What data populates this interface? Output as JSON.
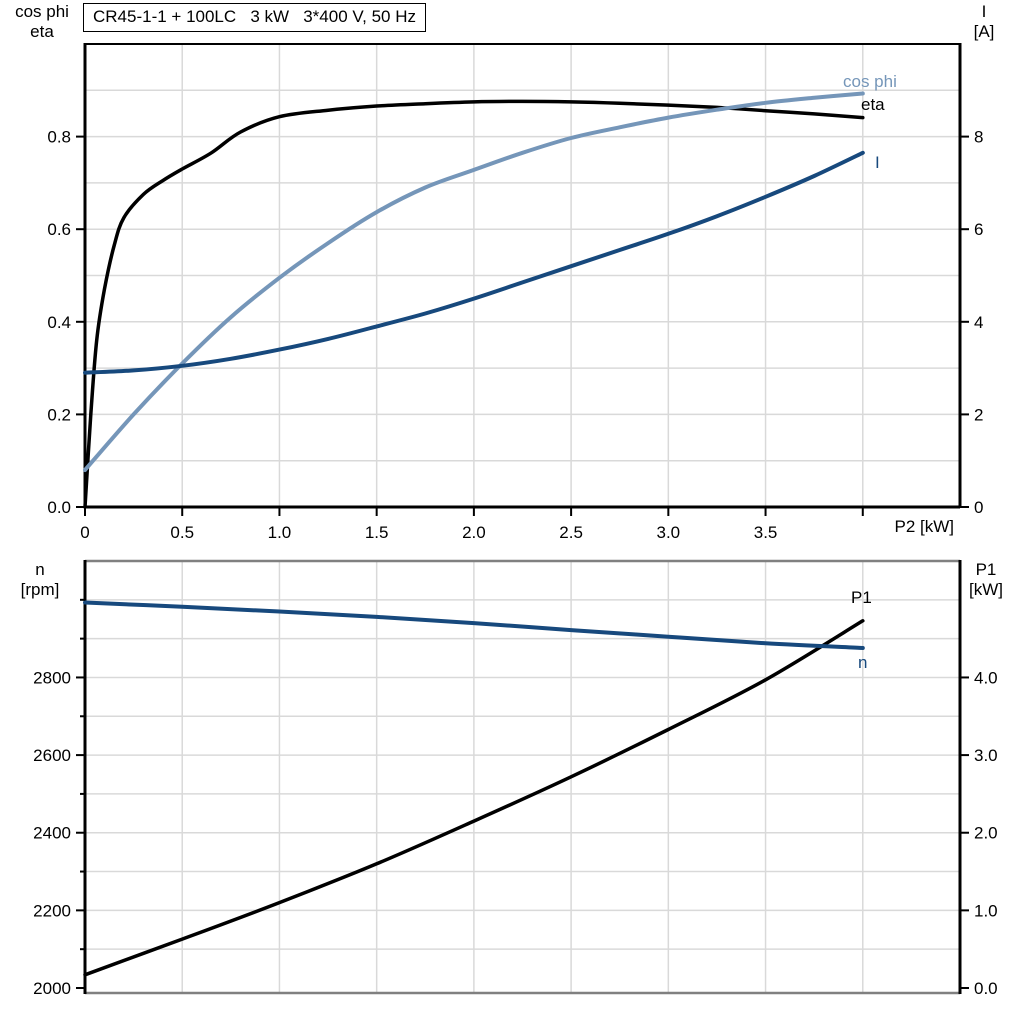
{
  "title": "CR45-1-1 + 100LC   3 kW   3*400 V, 50 Hz",
  "headers": {
    "top_left_1": "cos phi",
    "top_left_2": "eta",
    "top_right_1": "I",
    "top_right_2": "[A]",
    "bottom_left_1": "n",
    "bottom_left_2": "[rpm]",
    "bottom_right_1": "P1",
    "bottom_right_2": "[kW]",
    "x_label": "P2 [kW]"
  },
  "curve_labels": {
    "cos_phi": "cos phi",
    "eta": "eta",
    "current": "I",
    "p1": "P1",
    "n": "n"
  },
  "colors": {
    "eta": "#000000",
    "cos_phi": "#7596b9",
    "current": "#17497d",
    "n": "#17497d",
    "p1": "#000000",
    "grid": "#d9d9d9",
    "frame_gray": "#808080",
    "axis": "#000000",
    "text": "#000000"
  },
  "chart_data": [
    {
      "type": "line",
      "title": "CR45-1-1 + 100LC   3 kW   3*400 V, 50 Hz",
      "x_axis": {
        "label": "P2 [kW]",
        "range": [
          0,
          4.5
        ],
        "ticks": [
          0,
          0.5,
          1,
          1.5,
          2,
          2.5,
          3,
          3.5,
          4
        ],
        "tick_labels": [
          "0",
          "0.5",
          "1.0",
          "1.5",
          "2.0",
          "2.5",
          "3.0",
          "3.5",
          ""
        ],
        "grid_step": 0.5
      },
      "y_left": {
        "label": "cos phi / eta",
        "range": [
          0,
          1.0
        ],
        "ticks": [
          0,
          0.2,
          0.4,
          0.6,
          0.8
        ],
        "tick_labels": [
          "0.0",
          "0.2",
          "0.4",
          "0.6",
          "0.8"
        ],
        "grid_step": 0.1,
        "minor_ticks": []
      },
      "y_right": {
        "label": "I [A]",
        "range": [
          0,
          10
        ],
        "ticks": [
          0,
          2,
          4,
          6,
          8
        ],
        "tick_labels": [
          "0",
          "2",
          "4",
          "6",
          "8"
        ]
      },
      "series": [
        {
          "name": "eta",
          "axis": "left",
          "color_key": "eta",
          "width": 3.5,
          "x": [
            0,
            0.03,
            0.06,
            0.1,
            0.15,
            0.2,
            0.3,
            0.4,
            0.5,
            0.65,
            0.8,
            1.0,
            1.25,
            1.5,
            1.75,
            2.0,
            2.25,
            2.5,
            2.75,
            3.0,
            3.25,
            3.5,
            3.75,
            4.0
          ],
          "y": [
            0,
            0.2,
            0.36,
            0.47,
            0.565,
            0.625,
            0.675,
            0.705,
            0.73,
            0.765,
            0.81,
            0.843,
            0.857,
            0.866,
            0.871,
            0.875,
            0.876,
            0.875,
            0.872,
            0.868,
            0.863,
            0.856,
            0.849,
            0.841
          ]
        },
        {
          "name": "cos phi",
          "axis": "left",
          "color_key": "cos_phi",
          "width": 4,
          "x": [
            0,
            0.25,
            0.5,
            0.75,
            1.0,
            1.25,
            1.5,
            1.75,
            2.0,
            2.25,
            2.5,
            2.75,
            3.0,
            3.25,
            3.5,
            3.75,
            4.0
          ],
          "y": [
            0.08,
            0.2,
            0.31,
            0.41,
            0.495,
            0.57,
            0.637,
            0.69,
            0.728,
            0.765,
            0.797,
            0.82,
            0.841,
            0.858,
            0.873,
            0.884,
            0.893
          ]
        },
        {
          "name": "I",
          "axis": "right",
          "color_key": "current",
          "width": 4,
          "x": [
            0,
            0.25,
            0.5,
            0.75,
            1.0,
            1.25,
            1.5,
            1.75,
            2.0,
            2.25,
            2.5,
            2.75,
            3.0,
            3.25,
            3.5,
            3.75,
            4.0
          ],
          "y": [
            2.9,
            2.95,
            3.05,
            3.2,
            3.4,
            3.63,
            3.9,
            4.18,
            4.5,
            4.85,
            5.2,
            5.55,
            5.9,
            6.28,
            6.7,
            7.15,
            7.65
          ]
        }
      ]
    },
    {
      "type": "line",
      "title": "",
      "x_axis": {
        "label": "",
        "range": [
          0,
          4.5
        ],
        "ticks": [],
        "tick_labels": [],
        "grid_step": 0.5
      },
      "y_left": {
        "label": "n [rpm]",
        "range": [
          2000,
          3100
        ],
        "ticks": [
          2000,
          2200,
          2400,
          2600,
          2800
        ],
        "tick_labels": [
          "2000",
          "2200",
          "2400",
          "2600",
          "2800"
        ],
        "minor_ticks": [
          2100,
          2300,
          2500,
          2700,
          2900,
          3000
        ]
      },
      "y_right": {
        "label": "P1 [kW]",
        "range": [
          0,
          5.5
        ],
        "ticks": [
          0,
          1,
          2,
          3,
          4
        ],
        "tick_labels": [
          "0.0",
          "1.0",
          "2.0",
          "3.0",
          "4.0"
        ],
        "grid_step": 0.5
      },
      "series": [
        {
          "name": "P1",
          "axis": "right",
          "color_key": "p1",
          "width": 3.5,
          "x": [
            0,
            0.5,
            1.0,
            1.5,
            2.0,
            2.5,
            3.0,
            3.5,
            4.0
          ],
          "y": [
            0.17,
            0.63,
            1.1,
            1.6,
            2.15,
            2.72,
            3.33,
            3.97,
            4.73
          ]
        },
        {
          "name": "n",
          "axis": "left",
          "color_key": "n",
          "width": 4,
          "x": [
            0,
            0.5,
            1.0,
            1.5,
            2.0,
            2.5,
            3.0,
            3.5,
            4.0
          ],
          "y": [
            2993,
            2982,
            2970,
            2956,
            2940,
            2922,
            2905,
            2888,
            2876
          ]
        }
      ]
    }
  ]
}
